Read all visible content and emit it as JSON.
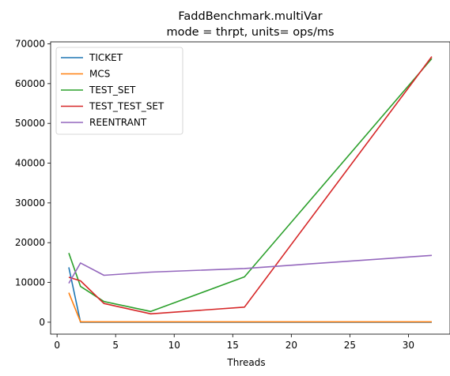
{
  "chart_data": {
    "type": "line",
    "title": "FaddBenchmark.multiVar",
    "subtitle": "mode = thrpt, units= ops/ms",
    "xlabel": "Threads",
    "ylabel": "",
    "xlim": [
      -0.55,
      33.55
    ],
    "ylim": [
      -3000,
      70500
    ],
    "xticks": [
      0,
      5,
      10,
      15,
      20,
      25,
      30
    ],
    "yticks": [
      0,
      10000,
      20000,
      30000,
      40000,
      50000,
      60000,
      70000
    ],
    "grid": false,
    "legend_position": "top-left",
    "series": [
      {
        "name": "TICKET",
        "color": "#1f77b4",
        "x": [
          1,
          2,
          4,
          8,
          16,
          32
        ],
        "y": [
          13800,
          0,
          0,
          0,
          0,
          0
        ]
      },
      {
        "name": "MCS",
        "color": "#ff7f0e",
        "x": [
          1,
          2,
          4,
          8,
          16,
          32
        ],
        "y": [
          7400,
          100,
          100,
          100,
          100,
          100
        ]
      },
      {
        "name": "TEST_SET",
        "color": "#2ca02c",
        "x": [
          1,
          2,
          4,
          8,
          16,
          32
        ],
        "y": [
          17400,
          9000,
          5200,
          2700,
          11400,
          66300
        ]
      },
      {
        "name": "TEST_TEST_SET",
        "color": "#d62728",
        "x": [
          1,
          2,
          4,
          8,
          16,
          32
        ],
        "y": [
          11300,
          10400,
          4700,
          2100,
          3800,
          66800
        ]
      },
      {
        "name": "REENTRANT",
        "color": "#9467bd",
        "x": [
          1,
          2,
          4,
          8,
          16,
          32
        ],
        "y": [
          9800,
          14900,
          11800,
          12600,
          13500,
          16800
        ]
      }
    ]
  }
}
